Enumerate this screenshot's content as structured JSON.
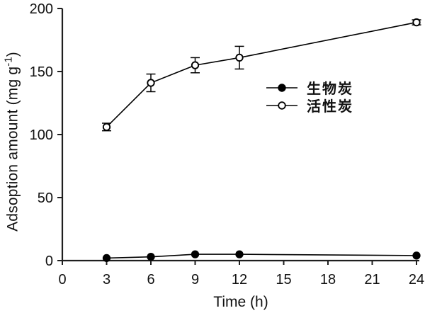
{
  "chart_data": {
    "type": "line",
    "title": "",
    "xlabel": "Time (h)",
    "ylabel": {
      "text": "Adsoption amount (mg g⁻¹)",
      "prefix": "Adsoption amount (mg g",
      "superscript": "-1",
      "suffix": ")"
    },
    "xlim": [
      0,
      24
    ],
    "ylim": [
      0,
      200
    ],
    "xticks": [
      0,
      3,
      6,
      9,
      12,
      15,
      18,
      21,
      24
    ],
    "yticks": [
      0,
      50,
      100,
      150,
      200
    ],
    "grid": false,
    "legend_position": "center-right",
    "x": [
      3,
      6,
      9,
      12,
      24
    ],
    "series": [
      {
        "id": "biochar",
        "name": "生物炭",
        "marker": "filled-circle",
        "marker_fill": "#000000",
        "values": [
          2,
          3,
          5,
          5,
          4
        ],
        "errors": [
          0,
          0,
          0,
          0,
          0
        ]
      },
      {
        "id": "activated-carbon",
        "name": "活性炭",
        "marker": "open-circle",
        "marker_fill": "#ffffff",
        "values": [
          106,
          141,
          155,
          161,
          189
        ],
        "errors": [
          3,
          7,
          6,
          9,
          2
        ]
      }
    ],
    "colors": {
      "axis": "#1f1f1f",
      "series": "#000000",
      "background": "#ffffff"
    }
  }
}
